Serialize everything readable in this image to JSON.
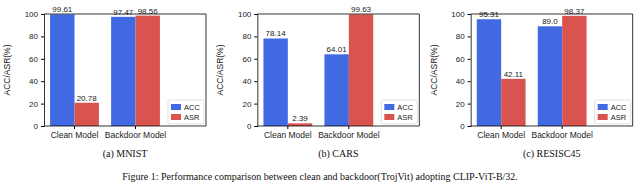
{
  "caption": "Figure 1: Performance comparison between clean and backdoor(TrojVit) adopting CLIP-ViT-B/32.",
  "chart_data": [
    {
      "type": "bar",
      "title": "(a) MNIST",
      "y_label": "ACC/ASR(%)",
      "categories": [
        "Clean Model",
        "Backdoor Model"
      ],
      "series": [
        {
          "name": "ACC",
          "color": "#4169e1",
          "values": [
            99.61,
            97.47
          ]
        },
        {
          "name": "ASR",
          "color": "#d9534f",
          "values": [
            20.78,
            98.56
          ]
        }
      ],
      "ylim": [
        0,
        100
      ],
      "yticks": [
        0,
        20,
        40,
        60,
        80,
        100
      ],
      "grid": false,
      "legend": "lower right",
      "data_labels": true
    },
    {
      "type": "bar",
      "title": "(b) CARS",
      "y_label": "ACC/ASR(%)",
      "categories": [
        "Clean Model",
        "Backdoor Model"
      ],
      "series": [
        {
          "name": "ACC",
          "color": "#4169e1",
          "values": [
            78.14,
            64.01
          ]
        },
        {
          "name": "ASR",
          "color": "#d9534f",
          "values": [
            2.39,
            99.63
          ]
        }
      ],
      "ylim": [
        0,
        100
      ],
      "yticks": [
        0,
        20,
        40,
        60,
        80,
        100
      ],
      "grid": false,
      "legend": "lower right",
      "data_labels": true
    },
    {
      "type": "bar",
      "title": "(c) RESISC45",
      "y_label": "ACC/ASR(%)",
      "categories": [
        "Clean Model",
        "Backdoor Model"
      ],
      "series": [
        {
          "name": "ACC",
          "color": "#4169e1",
          "values": [
            95.31,
            89.0
          ],
          "value_labels": [
            "95.31",
            "89.0"
          ]
        },
        {
          "name": "ASR",
          "color": "#d9534f",
          "values": [
            42.11,
            98.37
          ]
        }
      ],
      "ylim": [
        0,
        100
      ],
      "yticks": [
        0,
        20,
        40,
        60,
        80,
        100
      ],
      "grid": false,
      "legend": "lower right",
      "data_labels": true
    }
  ]
}
